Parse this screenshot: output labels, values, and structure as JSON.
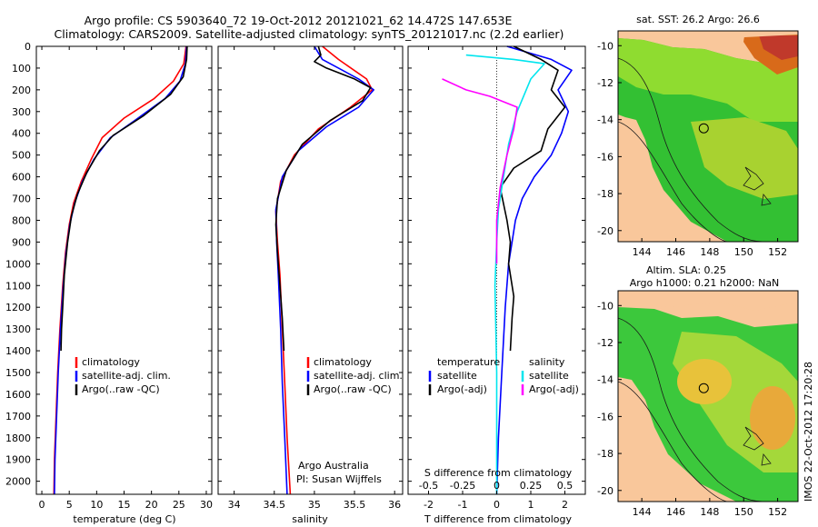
{
  "header": {
    "line1": "Argo profile: CS 5903640_72 19-Oct-2012 20121021_62 14.472S 147.653E",
    "line2": "Climatology: CARS2009. Satellite-adjusted climatology: synTS_20121017.nc (2.2d earlier)"
  },
  "colors": {
    "climatology": "#ff0000",
    "satellite": "#0000ff",
    "argo": "#000000",
    "sat_salinity": "#00e5ee",
    "argo_salinity": "#ff00ff",
    "land": "#f9c79b"
  },
  "chart_data": [
    {
      "type": "line",
      "id": "temperature",
      "xlabel": "temperature (deg C)",
      "xlim": [
        -1,
        31
      ],
      "xticks": [
        0,
        5,
        10,
        15,
        20,
        25,
        30
      ],
      "xtick_labels": [
        "0",
        "5",
        "10",
        "15",
        "20",
        "25",
        "30"
      ],
      "ylim": [
        0,
        2060
      ],
      "yticks": [
        0,
        100,
        200,
        300,
        400,
        500,
        600,
        700,
        800,
        900,
        1000,
        1100,
        1200,
        1300,
        1400,
        1500,
        1600,
        1700,
        1800,
        1900,
        2000
      ],
      "ytick_labels": [
        "0",
        "100",
        "200",
        "300",
        "400",
        "500",
        "600",
        "700",
        "800",
        "900",
        "1000",
        "1100",
        "1200",
        "1300",
        "1400",
        "1500",
        "1600",
        "1700",
        "1800",
        "1900",
        "2000"
      ],
      "legend": [
        "climatology",
        "satellite-adj. clim.",
        "Argo(..raw -QC)"
      ],
      "series": [
        {
          "name": "climatology",
          "color": "red",
          "points": [
            [
              26.3,
              0
            ],
            [
              25.9,
              80
            ],
            [
              24,
              160
            ],
            [
              20.5,
              240
            ],
            [
              15,
              330
            ],
            [
              11,
              420
            ],
            [
              9,
              520
            ],
            [
              7.2,
              620
            ],
            [
              5.8,
              720
            ],
            [
              5,
              820
            ],
            [
              4.3,
              950
            ],
            [
              3.8,
              1100
            ],
            [
              3.3,
              1300
            ],
            [
              2.9,
              1500
            ],
            [
              2.6,
              1700
            ],
            [
              2.3,
              1900
            ],
            [
              2.2,
              2060
            ]
          ]
        },
        {
          "name": "satellite-adj. clim.",
          "color": "blue",
          "points": [
            [
              26.4,
              0
            ],
            [
              26.2,
              80
            ],
            [
              25.2,
              160
            ],
            [
              22.5,
              240
            ],
            [
              17,
              340
            ],
            [
              12.5,
              420
            ],
            [
              9.5,
              520
            ],
            [
              7.4,
              620
            ],
            [
              6,
              720
            ],
            [
              5.1,
              820
            ],
            [
              4.4,
              950
            ],
            [
              3.9,
              1100
            ],
            [
              3.4,
              1300
            ],
            [
              3,
              1500
            ],
            [
              2.7,
              1700
            ],
            [
              2.4,
              1900
            ],
            [
              2.3,
              2060
            ]
          ]
        },
        {
          "name": "Argo(..raw -QC)",
          "color": "black",
          "points": [
            [
              26.5,
              0
            ],
            [
              26.4,
              60
            ],
            [
              25.8,
              140
            ],
            [
              23.5,
              220
            ],
            [
              18.5,
              320
            ],
            [
              13,
              410
            ],
            [
              10.5,
              480
            ],
            [
              8.2,
              580
            ],
            [
              6.5,
              680
            ],
            [
              5.4,
              780
            ],
            [
              4.7,
              900
            ],
            [
              4.1,
              1050
            ],
            [
              3.8,
              1200
            ],
            [
              3.6,
              1300
            ],
            [
              3.5,
              1400
            ]
          ]
        }
      ]
    },
    {
      "type": "line",
      "id": "salinity",
      "xlabel": "salinity",
      "xlim": [
        33.8,
        36.1
      ],
      "xticks": [
        34,
        34.5,
        35,
        35.5,
        36
      ],
      "xtick_labels": [
        "34",
        "34.5",
        "35",
        "35.5",
        "36"
      ],
      "ylim": [
        0,
        2060
      ],
      "legend": [
        "climatology",
        "satellite-adj. clim.",
        "Argo(..raw -QC)"
      ],
      "annotation": [
        "Argo Australia",
        "PI: Susan Wijffels"
      ],
      "series": [
        {
          "name": "climatology",
          "color": "red",
          "points": [
            [
              35.1,
              0
            ],
            [
              35.3,
              60
            ],
            [
              35.65,
              150
            ],
            [
              35.72,
              200
            ],
            [
              35.45,
              280
            ],
            [
              35.05,
              380
            ],
            [
              34.75,
              500
            ],
            [
              34.58,
              620
            ],
            [
              34.52,
              760
            ],
            [
              34.54,
              900
            ],
            [
              34.57,
              1050
            ],
            [
              34.6,
              1300
            ],
            [
              34.63,
              1550
            ],
            [
              34.66,
              1800
            ],
            [
              34.7,
              2060
            ]
          ]
        },
        {
          "name": "satellite-adj. clim.",
          "color": "blue",
          "points": [
            [
              35,
              0
            ],
            [
              35.1,
              60
            ],
            [
              35.55,
              150
            ],
            [
              35.74,
              200
            ],
            [
              35.55,
              280
            ],
            [
              35.15,
              370
            ],
            [
              34.8,
              480
            ],
            [
              34.6,
              600
            ],
            [
              34.52,
              750
            ],
            [
              34.53,
              900
            ],
            [
              34.55,
              1050
            ],
            [
              34.58,
              1300
            ],
            [
              34.6,
              1550
            ],
            [
              34.63,
              1800
            ],
            [
              34.66,
              2060
            ]
          ]
        },
        {
          "name": "Argo(..raw -QC)",
          "color": "black",
          "points": [
            [
              35.05,
              0
            ],
            [
              35.08,
              40
            ],
            [
              35.0,
              70
            ],
            [
              35.15,
              100
            ],
            [
              35.5,
              150
            ],
            [
              35.7,
              190
            ],
            [
              35.6,
              250
            ],
            [
              35.2,
              340
            ],
            [
              34.85,
              450
            ],
            [
              34.65,
              570
            ],
            [
              34.54,
              700
            ],
            [
              34.52,
              820
            ],
            [
              34.54,
              950
            ],
            [
              34.57,
              1100
            ],
            [
              34.6,
              1250
            ],
            [
              34.62,
              1400
            ]
          ]
        }
      ]
    },
    {
      "type": "line",
      "id": "difference",
      "xlabel": "T difference from climatology",
      "xlim": [
        -2.6,
        2.6
      ],
      "xticks": [
        -2,
        -1,
        0,
        1,
        2
      ],
      "xtick_labels": [
        "-2",
        "-1",
        "0",
        "1",
        "2"
      ],
      "top_xlabel": "S difference from climatology",
      "top_xticks": [
        -0.5,
        -0.25,
        0,
        0.25,
        0.5
      ],
      "top_xtick_labels": [
        "-0.5",
        "-0.25",
        "0",
        "0.25",
        "0.5"
      ],
      "ylim": [
        0,
        2060
      ],
      "legend_temperature": [
        "temperature",
        "satellite",
        "Argo(-adj)"
      ],
      "legend_salinity": [
        "salinity",
        "satellite",
        "Argo(-adj)"
      ],
      "series": [
        {
          "name": "T satellite",
          "color": "blue",
          "points": [
            [
              0.3,
              0
            ],
            [
              1.6,
              60
            ],
            [
              2.2,
              110
            ],
            [
              1.8,
              200
            ],
            [
              2.1,
              300
            ],
            [
              1.9,
              400
            ],
            [
              1.6,
              500
            ],
            [
              1.1,
              600
            ],
            [
              0.75,
              700
            ],
            [
              0.55,
              800
            ],
            [
              0.45,
              900
            ],
            [
              0.35,
              1000
            ],
            [
              0.25,
              1200
            ],
            [
              0.15,
              1500
            ],
            [
              0.05,
              1800
            ],
            [
              0,
              2060
            ]
          ]
        },
        {
          "name": "T Argo(-adj)",
          "color": "black",
          "points": [
            [
              0.5,
              0
            ],
            [
              1.3,
              60
            ],
            [
              1.8,
              110
            ],
            [
              1.6,
              200
            ],
            [
              2.0,
              280
            ],
            [
              1.5,
              380
            ],
            [
              1.3,
              480
            ],
            [
              0.5,
              560
            ],
            [
              0.1,
              650
            ],
            [
              0.3,
              800
            ],
            [
              0.4,
              900
            ],
            [
              0.35,
              1000
            ],
            [
              0.5,
              1150
            ],
            [
              0.45,
              1250
            ],
            [
              0.4,
              1400
            ]
          ]
        },
        {
          "name": "S satellite",
          "color": "cyan",
          "points": [
            [
              -0.9,
              40
            ],
            [
              0.5,
              60
            ],
            [
              1.4,
              80
            ],
            [
              1.0,
              150
            ],
            [
              0.6,
              300
            ],
            [
              0.35,
              450
            ],
            [
              0.2,
              600
            ],
            [
              0.05,
              750
            ],
            [
              0,
              900
            ],
            [
              -0.05,
              1100
            ],
            [
              0,
              1500
            ],
            [
              0,
              2060
            ]
          ]
        },
        {
          "name": "S Argo(-adj)",
          "color": "magenta",
          "points": [
            [
              -1.6,
              150
            ],
            [
              -0.9,
              200
            ],
            [
              -0.2,
              230
            ],
            [
              0.6,
              280
            ],
            [
              0.5,
              380
            ],
            [
              0.3,
              500
            ],
            [
              0.1,
              650
            ],
            [
              0,
              800
            ],
            [
              0,
              1000
            ]
          ]
        }
      ]
    },
    {
      "type": "heatmap",
      "id": "sst_map",
      "title": "sat. SST: 26.2  Argo: 26.6",
      "xticks": [
        144,
        146,
        148,
        150,
        152
      ],
      "xtick_labels": [
        "144",
        "146",
        "148",
        "150",
        "152"
      ],
      "yticks": [
        -10,
        -12,
        -14,
        -16,
        -18,
        -20
      ],
      "ytick_labels": [
        "-10",
        "-12",
        "-14",
        "-16",
        "-18",
        "-20"
      ],
      "argo_position": [
        147.65,
        -14.47
      ]
    },
    {
      "type": "heatmap",
      "id": "sla_map",
      "title": [
        "Altim. SLA: 0.25",
        "Argo h1000: 0.21  h2000: NaN"
      ],
      "xticks": [
        144,
        146,
        148,
        150,
        152
      ],
      "xtick_labels": [
        "144",
        "146",
        "148",
        "150",
        "152"
      ],
      "yticks": [
        -10,
        -12,
        -14,
        -16,
        -18,
        -20
      ],
      "ytick_labels": [
        "-10",
        "-12",
        "-14",
        "-16",
        "-18",
        "-20"
      ],
      "argo_position": [
        147.65,
        -14.47
      ]
    }
  ],
  "footer": {
    "stamp": "IMOS 22-Oct-2012 17:20:28"
  }
}
